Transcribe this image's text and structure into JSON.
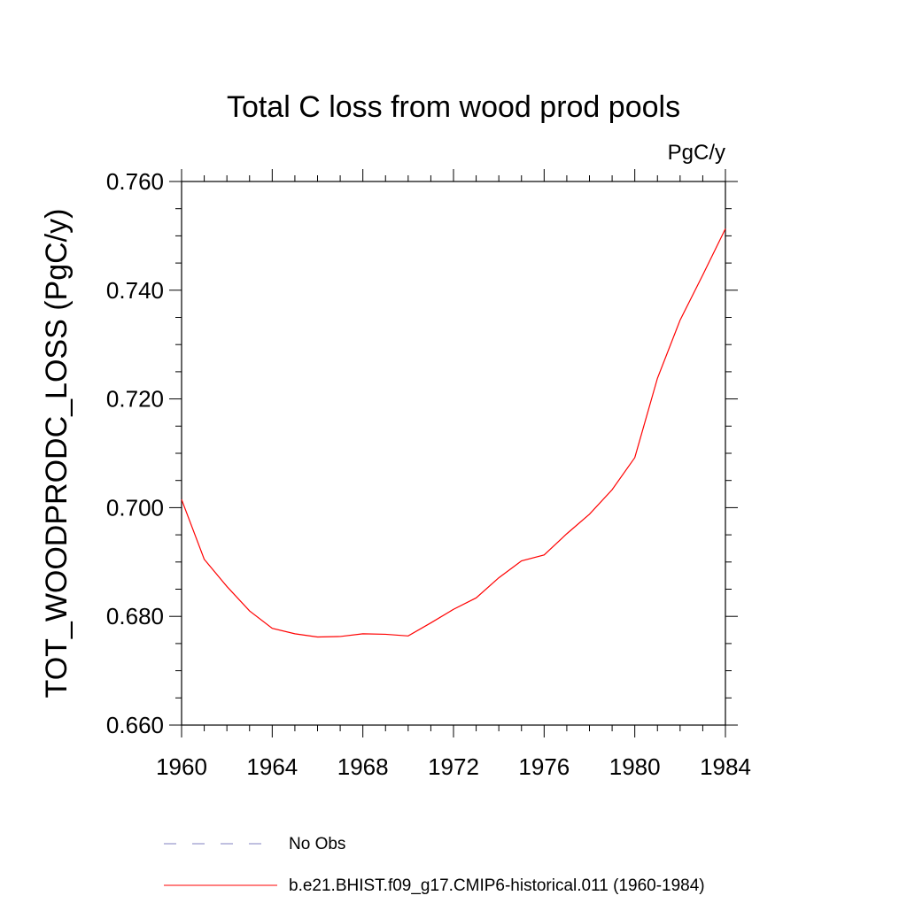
{
  "chart_data": {
    "type": "line",
    "title": "Total C loss from wood prod pools",
    "units_label": "PgC/y",
    "ylabel": "TOT_WOODPRODC_LOSS  (PgC/y)",
    "xlabel": "",
    "xlim": [
      1960,
      1984
    ],
    "ylim": [
      0.66,
      0.76
    ],
    "x_ticks": [
      1960,
      1964,
      1968,
      1972,
      1976,
      1980,
      1984
    ],
    "x_tick_labels": [
      "1960",
      "1964",
      "1968",
      "1972",
      "1976",
      "1980",
      "1984"
    ],
    "y_ticks": [
      0.66,
      0.68,
      0.7,
      0.72,
      0.74,
      0.76
    ],
    "y_tick_labels": [
      "0.660",
      "0.680",
      "0.700",
      "0.720",
      "0.740",
      "0.760"
    ],
    "grid": false,
    "legend_position": "bottom",
    "series": [
      {
        "name": "b.e21.BHIST.f09_g17.CMIP6-historical.011 (1960-1984)",
        "color": "#ff0000",
        "style": "solid",
        "x": [
          1960,
          1961,
          1962,
          1963,
          1964,
          1965,
          1966,
          1967,
          1968,
          1969,
          1970,
          1971,
          1972,
          1973,
          1974,
          1975,
          1976,
          1977,
          1978,
          1979,
          1980,
          1981,
          1982,
          1983,
          1984
        ],
        "y": [
          0.7015,
          0.6905,
          0.6855,
          0.681,
          0.6778,
          0.6768,
          0.6762,
          0.6763,
          0.6768,
          0.6767,
          0.6764,
          0.6788,
          0.6813,
          0.6834,
          0.6871,
          0.6902,
          0.6913,
          0.6952,
          0.6988,
          0.7033,
          0.7092,
          0.7238,
          0.7345,
          0.7428,
          0.7513
        ]
      }
    ],
    "legend": [
      {
        "label": "No Obs",
        "color": "#8080c0",
        "style": "dashed"
      },
      {
        "label": "b.e21.BHIST.f09_g17.CMIP6-historical.011 (1960-1984)",
        "color": "#ff0000",
        "style": "solid"
      }
    ]
  }
}
